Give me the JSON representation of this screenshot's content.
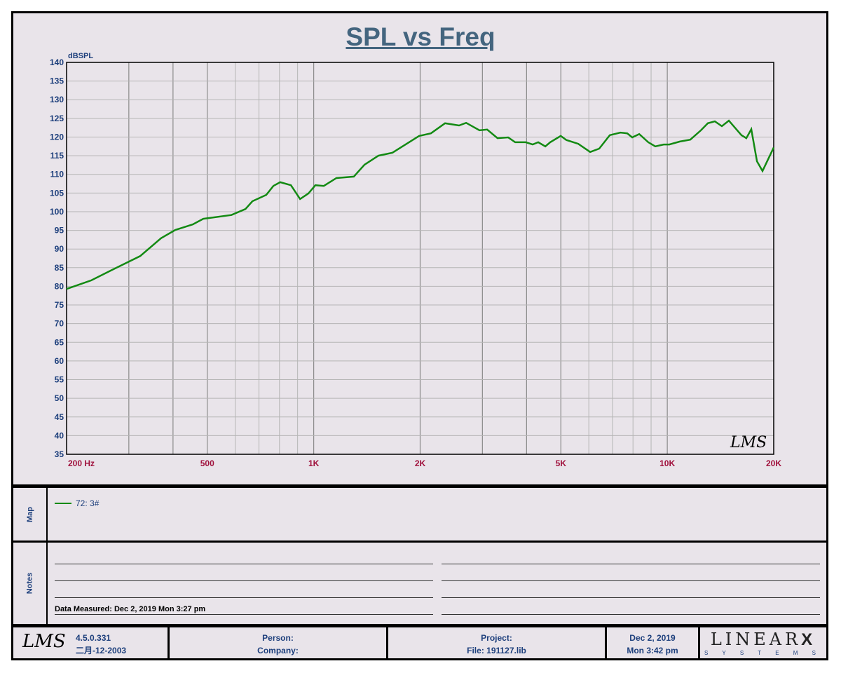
{
  "chart_data": {
    "type": "line",
    "title": "SPL vs Freq",
    "ylabel": "dBSPL",
    "xlabel": "Hz",
    "xscale": "log",
    "xlim": [
      200,
      20000
    ],
    "ylim": [
      35,
      140
    ],
    "grid": true,
    "yticks": [
      140,
      135,
      130,
      125,
      120,
      115,
      110,
      105,
      100,
      95,
      90,
      85,
      80,
      75,
      70,
      65,
      60,
      55,
      50,
      45,
      40,
      35
    ],
    "xtick_labels": [
      {
        "f": 200,
        "label": "200  Hz"
      },
      {
        "f": 500,
        "label": "500"
      },
      {
        "f": 1000,
        "label": "1K"
      },
      {
        "f": 2000,
        "label": "2K"
      },
      {
        "f": 5000,
        "label": "5K"
      },
      {
        "f": 10000,
        "label": "10K"
      },
      {
        "f": 20000,
        "label": "20K"
      }
    ],
    "series": [
      {
        "name": "72: 3#",
        "color": "#138a13",
        "x": [
          200,
          235,
          269,
          323,
          370,
          406,
          455,
          487,
          585,
          641,
          671,
          734,
          769,
          804,
          862,
          915,
          966,
          1011,
          1068,
          1159,
          1299,
          1392,
          1524,
          1670,
          1789,
          1986,
          2146,
          2352,
          2576,
          2698,
          2942,
          3094,
          3311,
          3548,
          3713,
          3977,
          4161,
          4316,
          4519,
          4666,
          4997,
          5181,
          5598,
          6051,
          6418,
          6877,
          7363,
          7706,
          7958,
          8330,
          8836,
          9248,
          9770,
          10134,
          10853,
          11619,
          12446,
          13025,
          13632,
          14266,
          14931,
          16205,
          16734,
          17283,
          17930,
          18594,
          20000
        ],
        "y": [
          79.3,
          81.6,
          84.4,
          88.1,
          92.9,
          95.1,
          96.6,
          98.1,
          99.1,
          100.7,
          102.8,
          104.5,
          106.9,
          107.9,
          107.1,
          103.4,
          104.9,
          107.1,
          106.9,
          109.0,
          109.4,
          112.6,
          115.0,
          115.8,
          117.6,
          120.3,
          121.0,
          123.7,
          123.1,
          123.8,
          121.8,
          122.0,
          119.7,
          119.9,
          118.6,
          118.6,
          118.0,
          118.6,
          117.5,
          118.6,
          120.3,
          119.2,
          118.2,
          116.0,
          116.9,
          120.5,
          121.2,
          121.0,
          119.9,
          120.8,
          118.6,
          117.5,
          118.0,
          118.0,
          118.8,
          119.3,
          121.8,
          123.7,
          124.2,
          122.9,
          124.4,
          120.5,
          119.7,
          122.1,
          113.5,
          110.9,
          117.2
        ]
      }
    ]
  },
  "watermark": "LMS",
  "map": {
    "label": "Map",
    "legend": "72: 3#"
  },
  "notes": {
    "label": "Notes",
    "measured": "Data Measured: Dec  2, 2019  Mon  3:27 pm"
  },
  "footer": {
    "logo": "LMS",
    "version": "4.5.0.331",
    "date": "二月-12-2003",
    "person": "Person:",
    "company": "Company:",
    "project": "Project:",
    "file": "File: 191127.lib",
    "print_date": "Dec  2, 2019",
    "print_time": "Mon  3:42 pm",
    "brand": "LINEAR",
    "brand_x": "X",
    "brand_sub": "S Y S T E M S"
  }
}
